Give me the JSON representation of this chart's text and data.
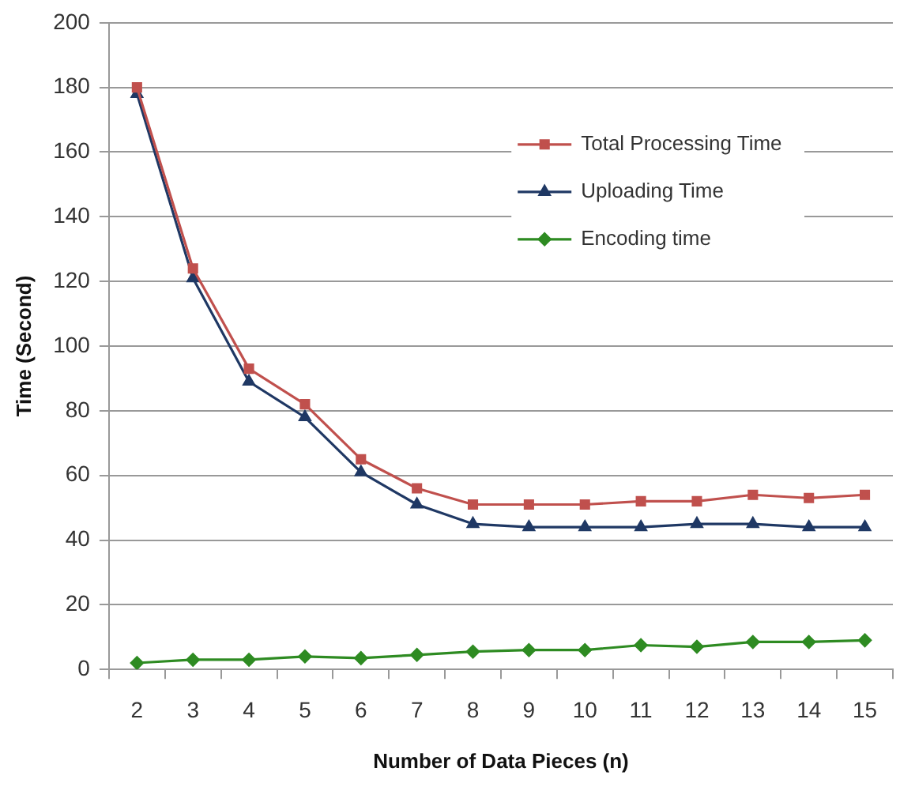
{
  "chart_data": {
    "type": "line",
    "xlabel": "Number of Data Pieces (n)",
    "ylabel": "Time (Second)",
    "categories": [
      "2",
      "3",
      "4",
      "5",
      "6",
      "7",
      "8",
      "9",
      "10",
      "11",
      "12",
      "13",
      "14",
      "15"
    ],
    "series": [
      {
        "name": "Total Processing Time",
        "color": "#c0504d",
        "marker": "square",
        "values": [
          180,
          124,
          93,
          82,
          65,
          56,
          51,
          51,
          51,
          52,
          52,
          54,
          53,
          54
        ]
      },
      {
        "name": "Uploading Time",
        "color": "#1f3864",
        "marker": "triangle",
        "values": [
          178,
          121,
          89,
          78,
          61,
          51,
          45,
          44,
          44,
          44,
          45,
          45,
          44,
          44
        ]
      },
      {
        "name": "Encoding time",
        "color": "#2e8b22",
        "marker": "diamond",
        "values": [
          2,
          3,
          3,
          4,
          3.5,
          4.5,
          5.5,
          6,
          6,
          7.5,
          7,
          8.5,
          8.5,
          9
        ]
      }
    ],
    "ylim": [
      0,
      200
    ],
    "yticks": [
      0,
      20,
      40,
      60,
      80,
      100,
      120,
      140,
      160,
      180,
      200
    ],
    "grid": "y",
    "legend": "top right",
    "line_style": "solid"
  }
}
